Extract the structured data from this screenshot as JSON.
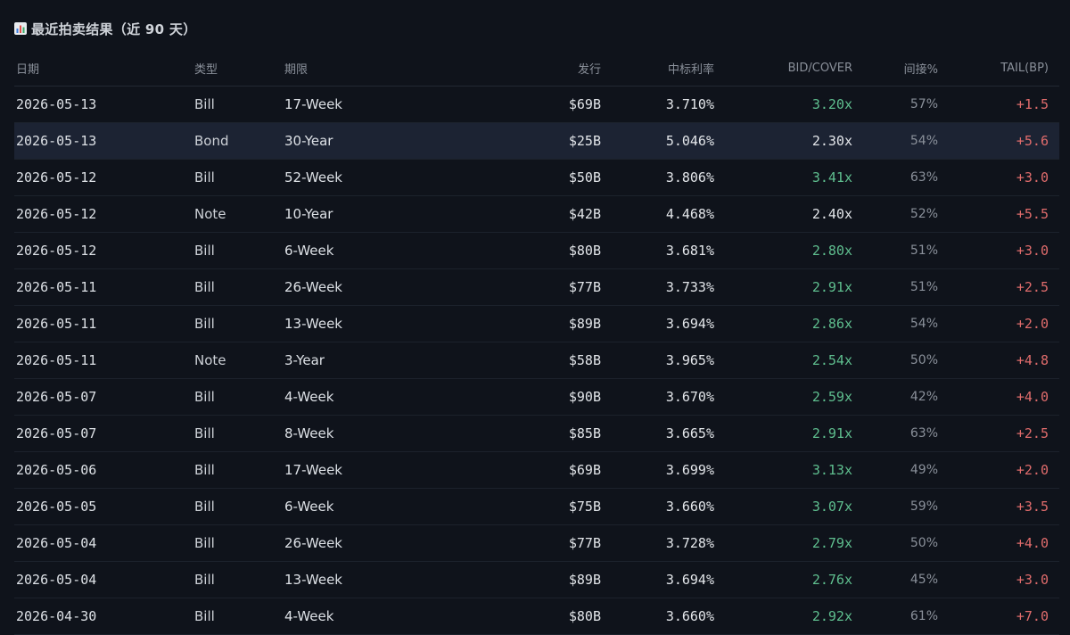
{
  "page": {
    "title": "最近拍卖结果（近 90 天）",
    "title_icon": "bar-chart-icon"
  },
  "colors": {
    "background": "#0f131b",
    "highlight_row": "#1c2333",
    "bid_cover_high": "#5fbf8f",
    "tail": "#e06c6c",
    "header_text": "#8a909a"
  },
  "table": {
    "headers": {
      "date": "日期",
      "type": "类型",
      "term": "期限",
      "amount": "发行",
      "rate": "中标利率",
      "bid_cover": "BID/COVER",
      "indirect": "间接%",
      "tail": "TAIL(BP)"
    },
    "rows": [
      {
        "date": "2026-05-13",
        "type": "Bill",
        "term": "17-Week",
        "amount": "$69B",
        "rate": "3.710%",
        "bid_cover": "3.20x",
        "bc_high": true,
        "indirect": "57%",
        "tail": "+1.5",
        "highlight": false
      },
      {
        "date": "2026-05-13",
        "type": "Bond",
        "term": "30-Year",
        "amount": "$25B",
        "rate": "5.046%",
        "bid_cover": "2.30x",
        "bc_high": false,
        "indirect": "54%",
        "tail": "+5.6",
        "highlight": true
      },
      {
        "date": "2026-05-12",
        "type": "Bill",
        "term": "52-Week",
        "amount": "$50B",
        "rate": "3.806%",
        "bid_cover": "3.41x",
        "bc_high": true,
        "indirect": "63%",
        "tail": "+3.0",
        "highlight": false
      },
      {
        "date": "2026-05-12",
        "type": "Note",
        "term": "10-Year",
        "amount": "$42B",
        "rate": "4.468%",
        "bid_cover": "2.40x",
        "bc_high": false,
        "indirect": "52%",
        "tail": "+5.5",
        "highlight": false
      },
      {
        "date": "2026-05-12",
        "type": "Bill",
        "term": "6-Week",
        "amount": "$80B",
        "rate": "3.681%",
        "bid_cover": "2.80x",
        "bc_high": true,
        "indirect": "51%",
        "tail": "+3.0",
        "highlight": false
      },
      {
        "date": "2026-05-11",
        "type": "Bill",
        "term": "26-Week",
        "amount": "$77B",
        "rate": "3.733%",
        "bid_cover": "2.91x",
        "bc_high": true,
        "indirect": "51%",
        "tail": "+2.5",
        "highlight": false
      },
      {
        "date": "2026-05-11",
        "type": "Bill",
        "term": "13-Week",
        "amount": "$89B",
        "rate": "3.694%",
        "bid_cover": "2.86x",
        "bc_high": true,
        "indirect": "54%",
        "tail": "+2.0",
        "highlight": false
      },
      {
        "date": "2026-05-11",
        "type": "Note",
        "term": "3-Year",
        "amount": "$58B",
        "rate": "3.965%",
        "bid_cover": "2.54x",
        "bc_high": true,
        "indirect": "50%",
        "tail": "+4.8",
        "highlight": false
      },
      {
        "date": "2026-05-07",
        "type": "Bill",
        "term": "4-Week",
        "amount": "$90B",
        "rate": "3.670%",
        "bid_cover": "2.59x",
        "bc_high": true,
        "indirect": "42%",
        "tail": "+4.0",
        "highlight": false
      },
      {
        "date": "2026-05-07",
        "type": "Bill",
        "term": "8-Week",
        "amount": "$85B",
        "rate": "3.665%",
        "bid_cover": "2.91x",
        "bc_high": true,
        "indirect": "63%",
        "tail": "+2.5",
        "highlight": false
      },
      {
        "date": "2026-05-06",
        "type": "Bill",
        "term": "17-Week",
        "amount": "$69B",
        "rate": "3.699%",
        "bid_cover": "3.13x",
        "bc_high": true,
        "indirect": "49%",
        "tail": "+2.0",
        "highlight": false
      },
      {
        "date": "2026-05-05",
        "type": "Bill",
        "term": "6-Week",
        "amount": "$75B",
        "rate": "3.660%",
        "bid_cover": "3.07x",
        "bc_high": true,
        "indirect": "59%",
        "tail": "+3.5",
        "highlight": false
      },
      {
        "date": "2026-05-04",
        "type": "Bill",
        "term": "26-Week",
        "amount": "$77B",
        "rate": "3.728%",
        "bid_cover": "2.79x",
        "bc_high": true,
        "indirect": "50%",
        "tail": "+4.0",
        "highlight": false
      },
      {
        "date": "2026-05-04",
        "type": "Bill",
        "term": "13-Week",
        "amount": "$89B",
        "rate": "3.694%",
        "bid_cover": "2.76x",
        "bc_high": true,
        "indirect": "45%",
        "tail": "+3.0",
        "highlight": false
      },
      {
        "date": "2026-04-30",
        "type": "Bill",
        "term": "4-Week",
        "amount": "$80B",
        "rate": "3.660%",
        "bid_cover": "2.92x",
        "bc_high": true,
        "indirect": "61%",
        "tail": "+7.0",
        "highlight": false
      }
    ]
  }
}
